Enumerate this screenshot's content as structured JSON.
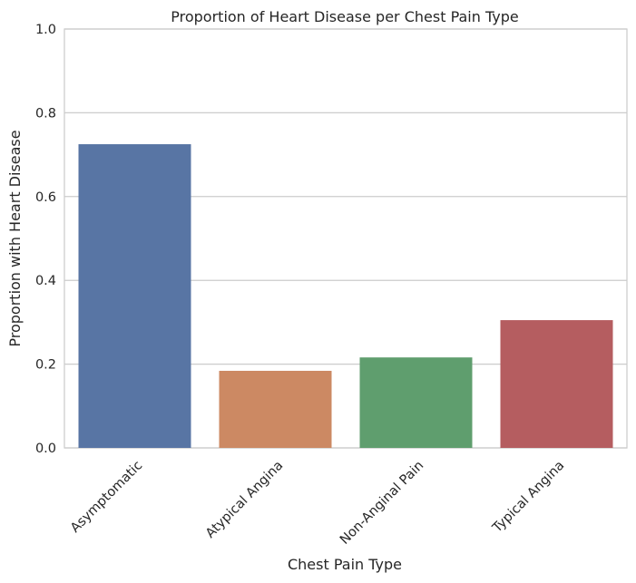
{
  "chart_data": {
    "type": "bar",
    "title": "Proportion of Heart Disease per Chest Pain Type",
    "xlabel": "Chest Pain Type",
    "ylabel": "Proportion with Heart Disease",
    "categories": [
      "Asymptomatic",
      "Atypical Angina",
      "Non-Anginal Pain",
      "Typical Angina"
    ],
    "values": [
      0.725,
      0.184,
      0.216,
      0.305
    ],
    "colors": [
      "#5875a4",
      "#cc8963",
      "#5f9e6e",
      "#b55d60"
    ],
    "ylim": [
      0,
      1
    ],
    "yticks": [
      "0.0",
      "0.2",
      "0.4",
      "0.6",
      "0.8",
      "1.0"
    ],
    "grid": "horizontal",
    "legend": "none"
  }
}
